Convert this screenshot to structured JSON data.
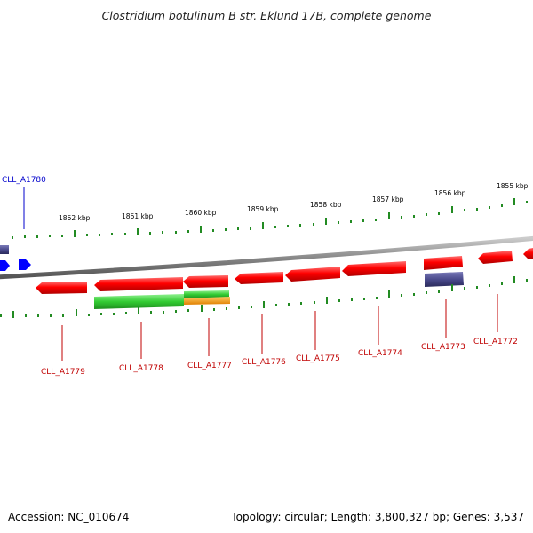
{
  "title": "Clostridium botulinum B str. Eklund 17B, complete genome",
  "footer": {
    "accession": "Accession: NC_010674",
    "summary": "Topology: circular; Length: 3,800,327 bp; Genes: 3,537"
  },
  "kbp_ticks": [
    "1862 kbp",
    "1861 kbp",
    "1860 kbp",
    "1859 kbp",
    "1858 kbp",
    "1857 kbp",
    "1856 kbp",
    "1855 kbp"
  ],
  "genes": {
    "g1780": "CLL_A1780",
    "g1779": "CLL_A1779",
    "g1778": "CLL_A1778",
    "g1777": "CLL_A1777",
    "g1776": "CLL_A1776",
    "g1775": "CLL_A1775",
    "g1774": "CLL_A1774",
    "g1773": "CLL_A1773",
    "g1772": "CLL_A1772"
  },
  "colors": {
    "cds": "#ff0000",
    "gene_feature": "#4a4a8c",
    "green_feature": "#33cc33",
    "orange_feature": "#ff9900",
    "blue_feature": "#0000ff",
    "tick": "#228b22",
    "backbone": "#888888"
  }
}
